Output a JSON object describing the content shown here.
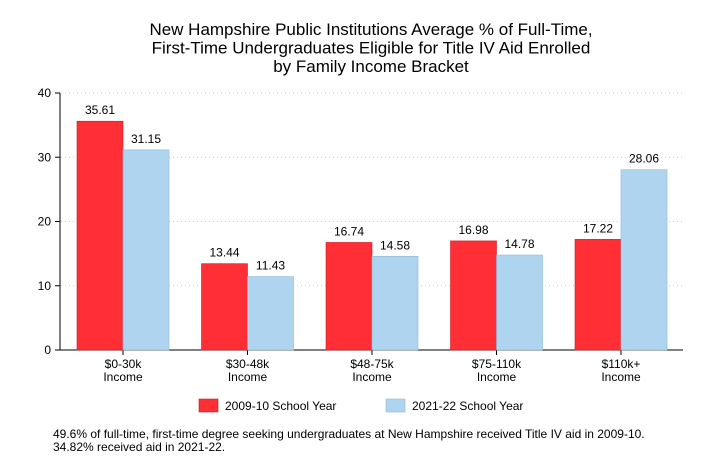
{
  "chart_data": {
    "type": "bar",
    "title_lines": [
      "New Hampshire Public Institutions Average % of Full-Time,",
      "First-Time Undergraduates Eligible for Title IV Aid Enrolled",
      "by Family Income Bracket"
    ],
    "categories": [
      [
        "$0-30k",
        "Income"
      ],
      [
        "$30-48k",
        "Income"
      ],
      [
        "$48-75k",
        "Income"
      ],
      [
        "$75-110k",
        "Income"
      ],
      [
        "$110k+",
        "Income"
      ]
    ],
    "series": [
      {
        "name": "2009-10 School Year",
        "color": "#ff2f35",
        "values": [
          35.61,
          13.44,
          16.74,
          16.98,
          17.22
        ]
      },
      {
        "name": "2021-22 School Year",
        "color": "#aed4f0",
        "values": [
          31.15,
          11.43,
          14.58,
          14.78,
          28.06
        ]
      }
    ],
    "ylim": [
      0,
      40
    ],
    "yticks": [
      0,
      10,
      20,
      30,
      40
    ],
    "grid": true,
    "legend_position": "bottom",
    "xlabel": "",
    "ylabel": ""
  },
  "footnote": "49.6% of full-time, first-time degree seeking undergraduates at New Hampshire received Title IV aid in 2009-10. 34.82% received aid in 2021-22."
}
